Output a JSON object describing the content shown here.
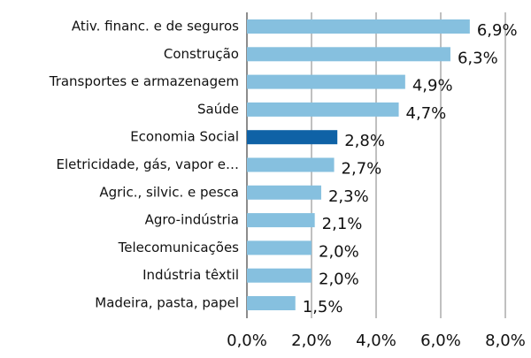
{
  "chart_data": {
    "type": "hbar",
    "categories": [
      "Ativ. financ. e de seguros",
      "Construção",
      "Transportes e armazenagem",
      "Saúde",
      "Economia Social",
      "Eletricidade, gás, vapor e…",
      "Agric., silvic. e pesca",
      "Agro-indústria",
      "Telecomunicações",
      "Indústria têxtil",
      "Madeira, pasta, papel"
    ],
    "values": [
      6.9,
      6.3,
      4.9,
      4.7,
      2.8,
      2.7,
      2.3,
      2.1,
      2.0,
      2.0,
      1.5
    ],
    "value_labels": [
      "6,9%",
      "6,3%",
      "4,9%",
      "4,7%",
      "2,8%",
      "2,7%",
      "2,3%",
      "2,1%",
      "2,0%",
      "2,0%",
      "1,5%"
    ],
    "colors": [
      "#86c0df",
      "#86c0df",
      "#86c0df",
      "#86c0df",
      "#0f62a6",
      "#86c0df",
      "#86c0df",
      "#86c0df",
      "#86c0df",
      "#86c0df",
      "#86c0df"
    ],
    "xlim": [
      0,
      8
    ],
    "xticks": [
      {
        "value": 0,
        "label": "0,0%"
      },
      {
        "value": 2,
        "label": "2,0%"
      },
      {
        "value": 4,
        "label": "4,0%"
      },
      {
        "value": 6,
        "label": "6,0%"
      },
      {
        "value": 8,
        "label": "8,0%"
      }
    ],
    "grid": true
  }
}
